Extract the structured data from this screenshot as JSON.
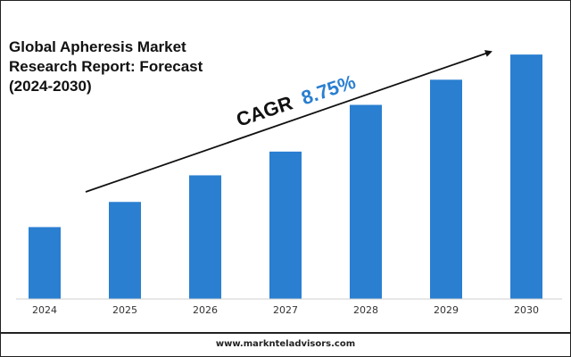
{
  "title_lines": [
    "Global Apheresis Market",
    "Research Report: Forecast",
    "(2024-2030)"
  ],
  "cagr": {
    "label": "CAGR",
    "value": "8.75%"
  },
  "footer": {
    "website": "www.marknteladvisors.com"
  },
  "colors": {
    "bar": "#2a7fd1",
    "cagr_value": "#2a7fd1",
    "text": "#111111"
  },
  "chart_data": {
    "type": "bar",
    "categories": [
      "2024",
      "2025",
      "2026",
      "2027",
      "2028",
      "2029",
      "2030"
    ],
    "values": [
      1.0,
      1.35,
      1.72,
      2.05,
      2.7,
      3.05,
      3.4
    ],
    "title": "Global Apheresis Market Research Report: Forecast (2024-2030)",
    "xlabel": "",
    "ylabel": "",
    "ylim": [
      0,
      3.6
    ],
    "grid": false,
    "legend": "none",
    "annotations": [
      "CAGR 8.75%"
    ]
  }
}
